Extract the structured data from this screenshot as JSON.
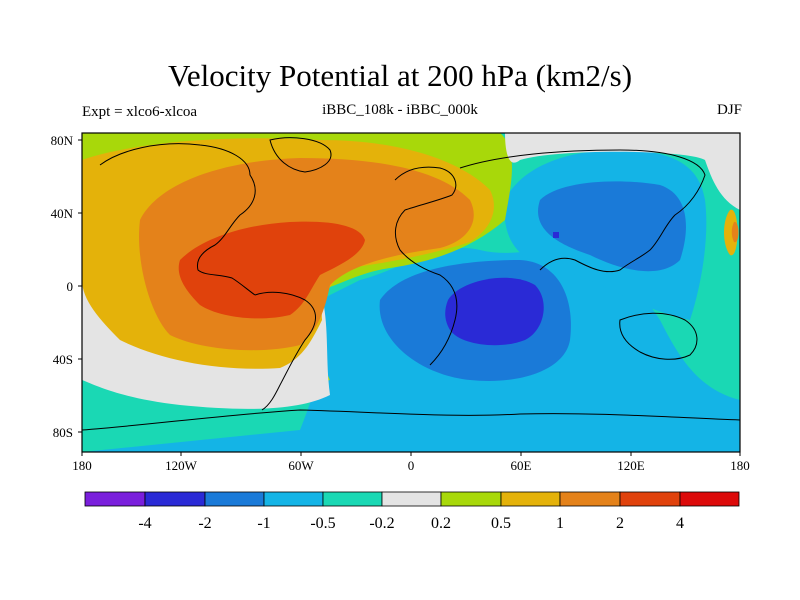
{
  "title": "Velocity Potential at 200 hPa (km2/s)",
  "subtitle_left": "Expt = xlco6-xlcoa",
  "subtitle_center": "iBBC_108k - iBBC_000k",
  "subtitle_right": "DJF",
  "lat_ticks": [
    "80N",
    "40N",
    "0",
    "40S",
    "80S"
  ],
  "lon_ticks": [
    "180",
    "120W",
    "60W",
    "0",
    "60E",
    "120E",
    "180"
  ],
  "colorbar": {
    "colors": [
      "#7a1fdc",
      "#2a2ad6",
      "#1a7ad8",
      "#14b4e6",
      "#1ad8b4",
      "#e4e4e4",
      "#a8d80a",
      "#e4b20a",
      "#e4821a",
      "#e0420c",
      "#dc0a0a"
    ],
    "labels": [
      "-4",
      "-2",
      "-1",
      "-0.5",
      "-0.2",
      "0.2",
      "0.5",
      "1",
      "2",
      "4"
    ]
  },
  "level_colors": {
    "l-4": "#2a2ad6",
    "l-2": "#1a7ad8",
    "l-1": "#14b4e6",
    "l-05": "#1ad8b4",
    "l0": "#e4e4e4",
    "l05": "#a8d80a",
    "l1": "#e4b20a",
    "l2": "#e4821a",
    "l4": "#e0420c"
  }
}
